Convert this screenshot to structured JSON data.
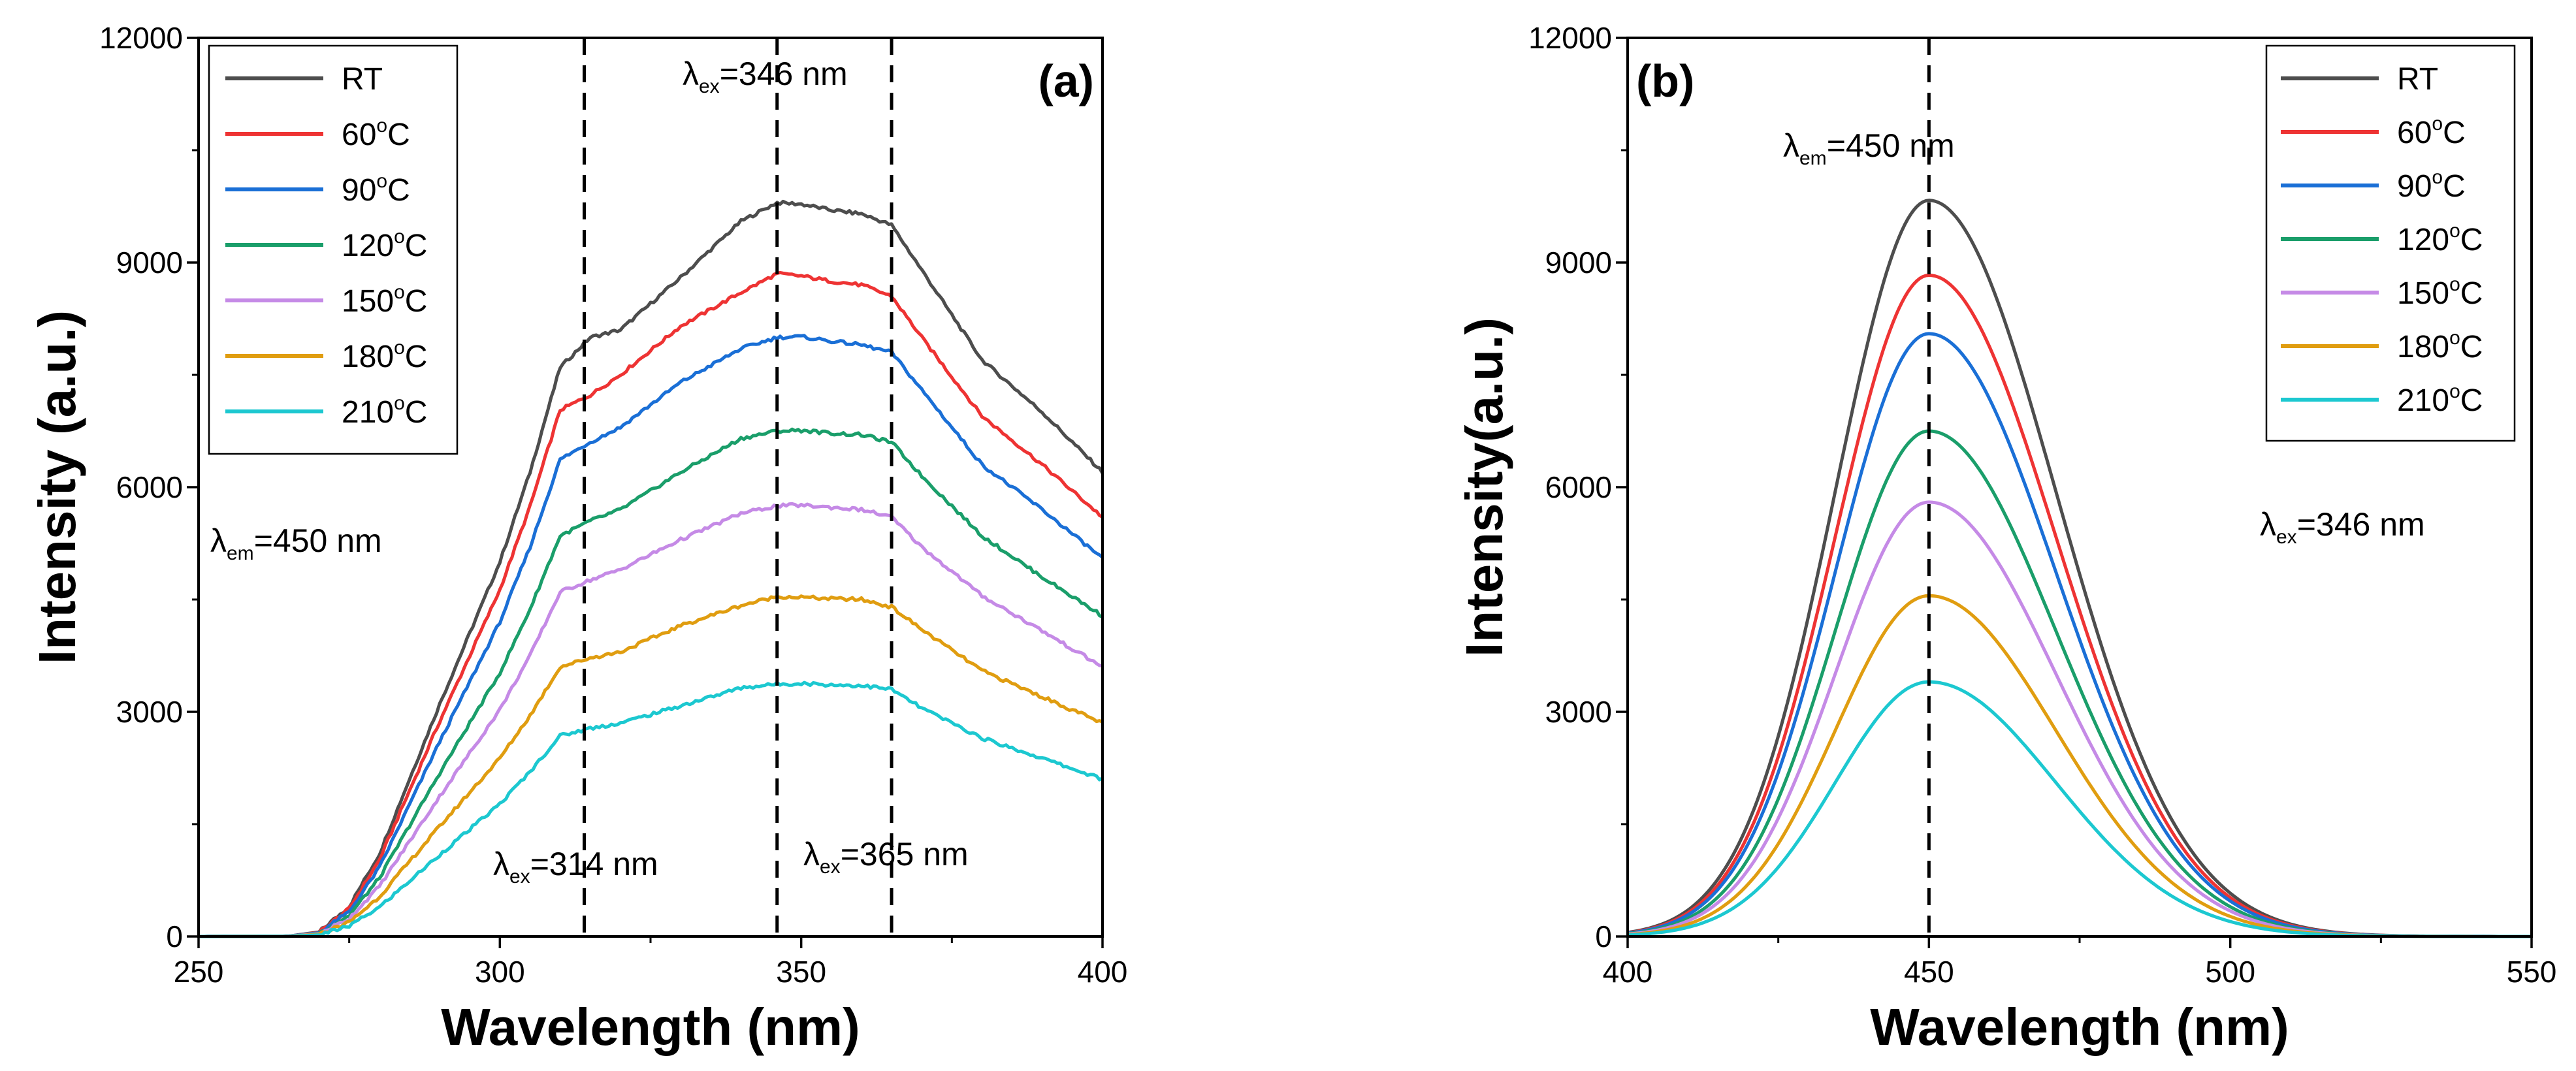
{
  "chart_data": [
    {
      "id": "a",
      "type": "line",
      "panel_label": "(a)",
      "title": "",
      "xlabel": "Wavelength (nm)",
      "ylabel": "Intensity (a.u.)",
      "xlim": [
        250,
        400
      ],
      "ylim": [
        0,
        12000
      ],
      "xticks": [
        250,
        300,
        350,
        400
      ],
      "yticks": [
        0,
        3000,
        6000,
        9000,
        12000
      ],
      "x": [
        250,
        265,
        270,
        275,
        280,
        290,
        300,
        305,
        310,
        315,
        320,
        330,
        340,
        346,
        350,
        355,
        360,
        365,
        370,
        380,
        390,
        400
      ],
      "series": [
        {
          "name": "RT",
          "sup": "",
          "color": "#4d4d4d",
          "values": [
            0,
            5,
            60,
            400,
            1100,
            3100,
            5000,
            6200,
            7600,
            8000,
            8100,
            8800,
            9550,
            9800,
            9780,
            9700,
            9650,
            9500,
            8900,
            7700,
            7000,
            6200
          ]
        },
        {
          "name": "60",
          "sup": "o",
          "unit": "C",
          "color": "#ee3333",
          "values": [
            0,
            5,
            55,
            370,
            1020,
            2870,
            4630,
            5740,
            7030,
            7230,
            7500,
            8150,
            8600,
            8850,
            8820,
            8750,
            8700,
            8550,
            8000,
            6950,
            6300,
            5600
          ]
        },
        {
          "name": "90",
          "sup": "o",
          "unit": "C",
          "color": "#1a6fd6",
          "values": [
            0,
            5,
            50,
            330,
            920,
            2600,
            4200,
            5200,
            6370,
            6600,
            6800,
            7400,
            7850,
            8000,
            8010,
            7950,
            7900,
            7800,
            7300,
            6300,
            5700,
            5050
          ]
        },
        {
          "name": "120",
          "sup": "o",
          "unit": "C",
          "color": "#1a9e6a",
          "values": [
            0,
            4,
            42,
            280,
            780,
            2180,
            3520,
            4370,
            5350,
            5550,
            5700,
            6200,
            6650,
            6750,
            6760,
            6720,
            6700,
            6600,
            6150,
            5350,
            4800,
            4280
          ]
        },
        {
          "name": "150",
          "sup": "o",
          "unit": "C",
          "color": "#c58ae6",
          "values": [
            0,
            4,
            36,
            240,
            670,
            1870,
            3030,
            3750,
            4600,
            4760,
            4900,
            5300,
            5650,
            5750,
            5760,
            5730,
            5700,
            5600,
            5200,
            4550,
            4080,
            3600
          ]
        },
        {
          "name": "180",
          "sup": "o",
          "unit": "C",
          "color": "#e09d10",
          "values": [
            0,
            3,
            28,
            190,
            530,
            1470,
            2380,
            2950,
            3600,
            3720,
            3800,
            4150,
            4420,
            4540,
            4530,
            4510,
            4500,
            4400,
            4100,
            3550,
            3200,
            2850
          ]
        },
        {
          "name": "210",
          "sup": "o",
          "unit": "C",
          "color": "#1cc8d0",
          "values": [
            0,
            2,
            20,
            140,
            390,
            1090,
            1770,
            2200,
            2680,
            2780,
            2850,
            3080,
            3320,
            3370,
            3380,
            3360,
            3350,
            3300,
            3050,
            2650,
            2380,
            2100
          ]
        }
      ],
      "vlines": [
        314,
        346,
        365
      ],
      "annotations": [
        {
          "pre": "λ",
          "sub": "ex",
          "post": "=346 nm"
        },
        {
          "pre": "λ",
          "sub": "ex",
          "post": "=314 nm"
        },
        {
          "pre": "λ",
          "sub": "ex",
          "post": "=365 nm"
        },
        {
          "pre": "λ",
          "sub": "em",
          "post": "=450 nm"
        }
      ],
      "legend_position": "top-left"
    },
    {
      "id": "b",
      "type": "line",
      "panel_label": "(b)",
      "title": "",
      "xlabel": "Wavelength (nm)",
      "ylabel": "Intensity(a.u.)",
      "xlim": [
        400,
        550
      ],
      "ylim": [
        0,
        12000
      ],
      "xticks": [
        400,
        450,
        500,
        550
      ],
      "yticks": [
        0,
        3000,
        6000,
        9000,
        12000
      ],
      "peak_x": 450,
      "series": [
        {
          "name": "RT",
          "sup": "",
          "color": "#4d4d4d",
          "peak": 9830
        },
        {
          "name": "60",
          "sup": "o",
          "unit": "C",
          "color": "#ee3333",
          "peak": 8830
        },
        {
          "name": "90",
          "sup": "o",
          "unit": "C",
          "color": "#1a6fd6",
          "peak": 8050
        },
        {
          "name": "120",
          "sup": "o",
          "unit": "C",
          "color": "#1a9e6a",
          "peak": 6750
        },
        {
          "name": "150",
          "sup": "o",
          "unit": "C",
          "color": "#c58ae6",
          "peak": 5800
        },
        {
          "name": "180",
          "sup": "o",
          "unit": "C",
          "color": "#e09d10",
          "peak": 4550
        },
        {
          "name": "210",
          "sup": "o",
          "unit": "C",
          "color": "#1cc8d0",
          "peak": 3400
        }
      ],
      "vlines": [
        450
      ],
      "annotations": [
        {
          "pre": "λ",
          "sub": "em",
          "post": "=450 nm"
        },
        {
          "pre": "λ",
          "sub": "ex",
          "post": "=346 nm"
        }
      ],
      "legend_position": "top-right"
    }
  ]
}
